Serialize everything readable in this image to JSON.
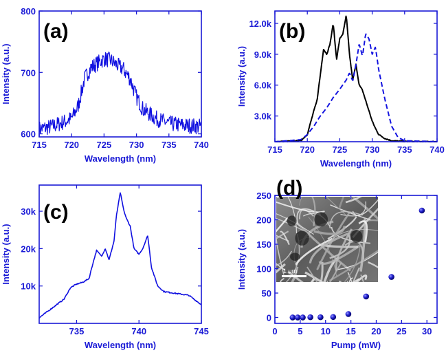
{
  "colors": {
    "axis": "#1a1ad6",
    "series_blue": "#1010e0",
    "series_black": "#000000",
    "dashed": "#1414e0"
  },
  "chart_data": [
    {
      "panel": "(a)",
      "type": "line",
      "xlabel": "Wavelength (nm)",
      "ylabel": "Intensity (a.u.)",
      "xlim": [
        715,
        740
      ],
      "ylim": [
        595,
        800
      ],
      "xticks": [
        715,
        720,
        725,
        730,
        735,
        740
      ],
      "yticks": [
        600,
        700,
        800
      ],
      "ytick_labels": [
        "600",
        "700",
        "800"
      ],
      "grid": false,
      "series": [
        {
          "style": "noisy",
          "x": [
            715,
            717,
            719,
            720,
            721,
            722,
            723,
            724,
            725,
            726,
            727,
            728,
            729,
            730,
            731,
            733,
            735,
            737,
            740
          ],
          "y": [
            608,
            612,
            620,
            625,
            645,
            690,
            708,
            715,
            722,
            720,
            712,
            705,
            690,
            660,
            640,
            625,
            617,
            614,
            612
          ]
        }
      ]
    },
    {
      "panel": "(b)",
      "type": "line",
      "xlabel": "Wavelength (nm)",
      "ylabel": "Intensity (a.u.)",
      "xlim": [
        715,
        740
      ],
      "ylim": [
        500,
        13200
      ],
      "xticks": [
        715,
        720,
        725,
        730,
        735,
        740
      ],
      "yticks": [
        3000,
        6000,
        9000,
        12000
      ],
      "ytick_labels": [
        "3.0k",
        "6.0k",
        "9.0k",
        "12.0k"
      ],
      "grid": false,
      "series": [
        {
          "style": "solid-black",
          "x": [
            715,
            719,
            720,
            721,
            721.5,
            722,
            722.5,
            723,
            723.5,
            724,
            724.5,
            725,
            725.5,
            726,
            726.5,
            727,
            727.5,
            728,
            728.5,
            729,
            729.5,
            730,
            730.5,
            731,
            732,
            733,
            735,
            740
          ],
          "y": [
            500,
            600,
            1200,
            3500,
            4500,
            7000,
            9500,
            9000,
            10000,
            12000,
            8500,
            10500,
            11000,
            12800,
            9000,
            6500,
            8000,
            6000,
            5500,
            4500,
            3500,
            2500,
            1800,
            1200,
            800,
            600,
            520,
            500
          ]
        },
        {
          "style": "dashed-blue",
          "x": [
            715,
            719,
            720,
            721,
            722,
            723,
            724,
            725,
            726,
            726.5,
            727,
            727.5,
            728,
            728.5,
            729,
            729.5,
            730,
            730.5,
            731,
            732,
            733,
            734,
            735,
            740
          ],
          "y": [
            500,
            700,
            1200,
            2000,
            3000,
            3800,
            4800,
            5600,
            6500,
            7200,
            6400,
            8000,
            10000,
            8800,
            11000,
            10500,
            9000,
            9700,
            7500,
            4500,
            2000,
            900,
            600,
            500
          ]
        }
      ]
    },
    {
      "panel": "(c)",
      "type": "line",
      "xlabel": "Wavelength (nm)",
      "ylabel": "Intensity (a.u.)",
      "xlim": [
        732,
        745
      ],
      "ylim": [
        0,
        37000
      ],
      "xticks": [
        735,
        740,
        745
      ],
      "yticks": [
        10000,
        20000,
        30000
      ],
      "ytick_labels": [
        "10k",
        "20k",
        "30k"
      ],
      "grid": false,
      "series": [
        {
          "style": "solid-blue",
          "x": [
            732,
            733,
            734,
            734.5,
            735,
            735.5,
            736,
            736.3,
            736.6,
            737,
            737.3,
            737.6,
            738,
            738.2,
            738.5,
            738.8,
            739,
            739.3,
            739.6,
            740,
            740.3,
            740.7,
            741,
            741.5,
            742,
            743,
            744,
            745
          ],
          "y": [
            1500,
            4000,
            6500,
            9500,
            10500,
            11000,
            12000,
            16000,
            19500,
            18000,
            20000,
            17000,
            22000,
            29000,
            35000,
            30000,
            28000,
            26000,
            20000,
            18500,
            20000,
            23500,
            15000,
            10000,
            8500,
            8000,
            7500,
            5000
          ]
        }
      ]
    },
    {
      "panel": "(d)",
      "type": "scatter",
      "xlabel": "Pump (mW)",
      "ylabel": "Intensity (a.u.)",
      "xlim": [
        0,
        32
      ],
      "ylim": [
        -12,
        250
      ],
      "xticks": [
        0,
        5,
        10,
        15,
        20,
        25,
        30
      ],
      "yticks": [
        0,
        50,
        100,
        150,
        200,
        250
      ],
      "ytick_labels": [
        "0",
        "50",
        "100",
        "150",
        "200",
        "250"
      ],
      "grid": false,
      "inset": {
        "kind": "SEM micrograph",
        "scale_bar": "1 μm"
      },
      "series": [
        {
          "style": "spheres",
          "x": [
            3.5,
            4.5,
            5.5,
            7,
            9,
            11.5,
            14.5,
            18,
            23,
            29
          ],
          "y": [
            0,
            0,
            0,
            0.5,
            0.5,
            1,
            7,
            43,
            83,
            219
          ]
        }
      ]
    }
  ]
}
